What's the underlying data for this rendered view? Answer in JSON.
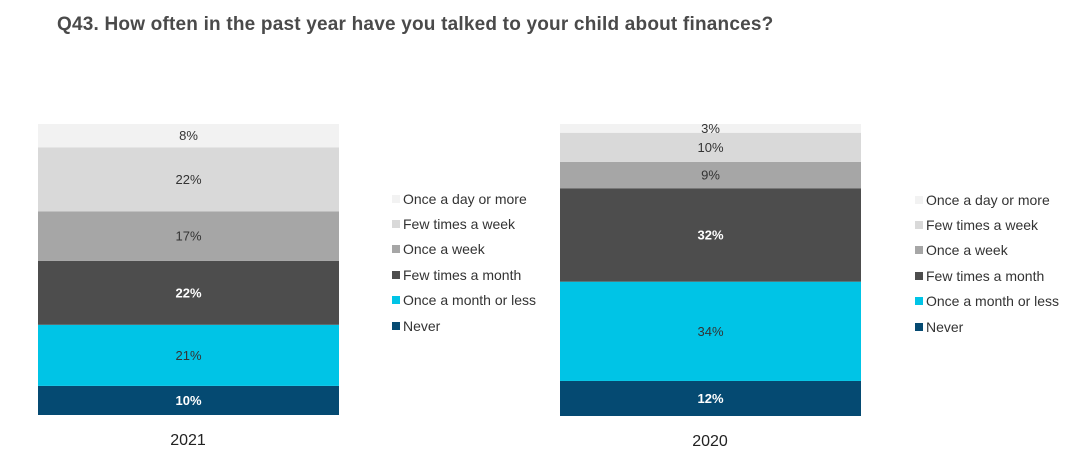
{
  "title": "Q43. How often in the past year have you talked to your child about finances?",
  "chart_data": [
    {
      "type": "bar",
      "stacked": true,
      "category": "2021",
      "series": [
        {
          "name": "Never",
          "value": 10,
          "label": "10%",
          "color": "#054a72",
          "label_color": "#ffffff",
          "bold": true
        },
        {
          "name": "Once a month or less",
          "value": 21,
          "label": "21%",
          "color": "#00c4e6",
          "label_color": "#333333",
          "bold": false
        },
        {
          "name": "Few times a month",
          "value": 22,
          "label": "22%",
          "color": "#4d4d4d",
          "label_color": "#ffffff",
          "bold": true
        },
        {
          "name": "Once a week",
          "value": 17,
          "label": "17%",
          "color": "#a6a6a6",
          "label_color": "#333333",
          "bold": false
        },
        {
          "name": "Few times a week",
          "value": 22,
          "label": "22%",
          "color": "#d9d9d9",
          "label_color": "#333333",
          "bold": false
        },
        {
          "name": "Once a day or more",
          "value": 8,
          "label": "8%",
          "color": "#f2f2f2",
          "label_color": "#333333",
          "bold": false
        }
      ],
      "legend_position": "right",
      "legend": [
        "Once a day or more",
        "Few times a week",
        "Once a week",
        "Few times a month",
        "Once a month or less",
        "Never"
      ]
    },
    {
      "type": "bar",
      "stacked": true,
      "category": "2020",
      "series": [
        {
          "name": "Never",
          "value": 12,
          "label": "12%",
          "color": "#054a72",
          "label_color": "#ffffff",
          "bold": true
        },
        {
          "name": "Once a month or less",
          "value": 34,
          "label": "34%",
          "color": "#00c4e6",
          "label_color": "#333333",
          "bold": false
        },
        {
          "name": "Few times a month",
          "value": 32,
          "label": "32%",
          "color": "#4d4d4d",
          "label_color": "#ffffff",
          "bold": true
        },
        {
          "name": "Once a week",
          "value": 9,
          "label": "9%",
          "color": "#a6a6a6",
          "label_color": "#333333",
          "bold": false
        },
        {
          "name": "Few times a week",
          "value": 10,
          "label": "10%",
          "color": "#d9d9d9",
          "label_color": "#333333",
          "bold": false
        },
        {
          "name": "Once a day or more",
          "value": 3,
          "label": "3%",
          "color": "#f2f2f2",
          "label_color": "#333333",
          "bold": false
        }
      ],
      "legend_position": "right",
      "legend": [
        "Once a day or more",
        "Few times a week",
        "Once a week",
        "Few times a month",
        "Once a month or less",
        "Never"
      ]
    }
  ]
}
